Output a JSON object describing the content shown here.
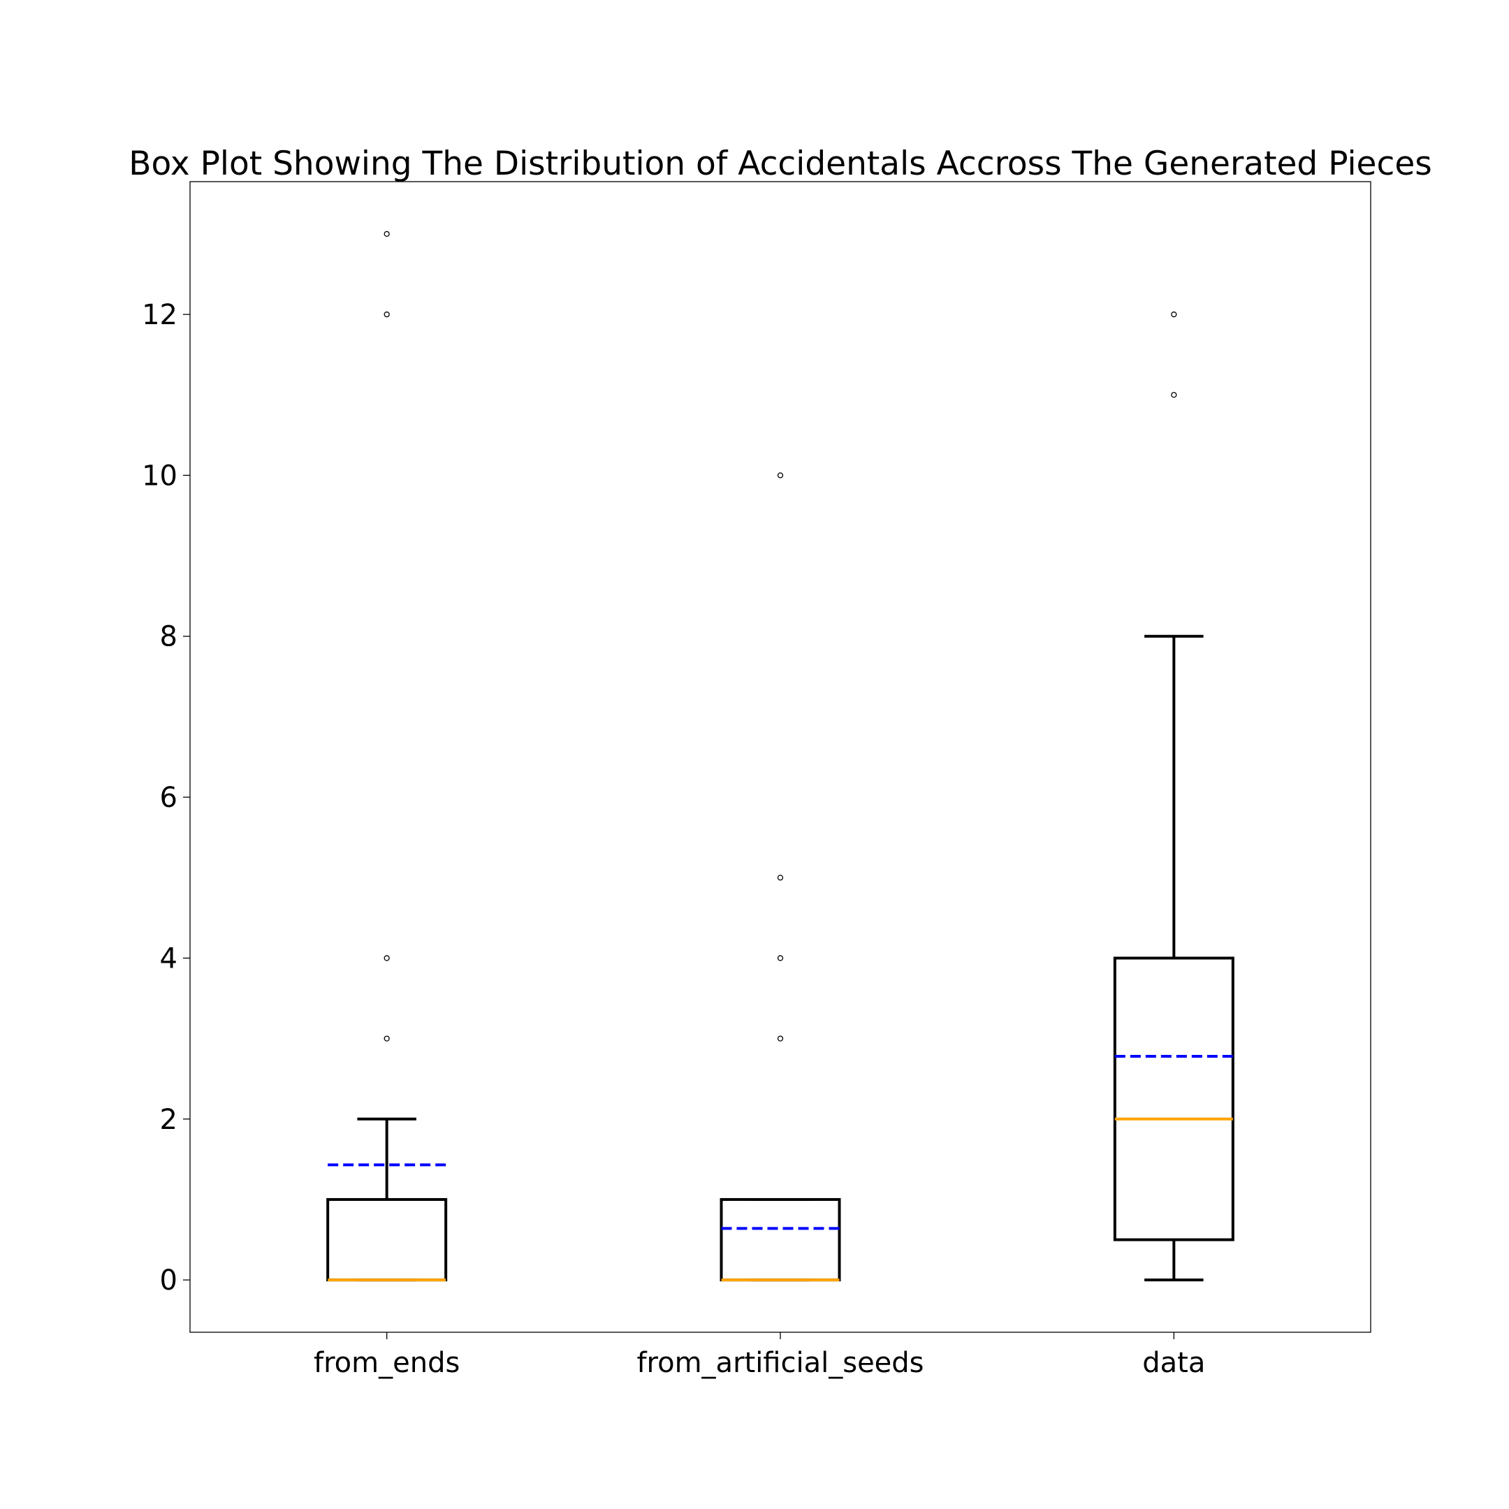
{
  "chart_data": {
    "type": "box",
    "title": "Box Plot Showing The Distribution of Accidentals Accross The Generated Pieces",
    "xlabel": "",
    "ylabel": "",
    "ylim": [
      -0.65,
      13.65
    ],
    "yticks": [
      0,
      2,
      4,
      6,
      8,
      10,
      12
    ],
    "grid": false,
    "legend": "none",
    "colors": {
      "box": "#000000",
      "median": "#ffa500",
      "mean": "#0000ff",
      "flier": "#000000"
    },
    "categories": [
      "from_ends",
      "from_artificial_seeds",
      "data"
    ],
    "boxes": [
      {
        "label": "from_ends",
        "whisker_low": 0,
        "q1": 0,
        "median": 0,
        "q3": 1,
        "whisker_high": 2,
        "mean": 1.43,
        "outliers": [
          3,
          4,
          12,
          13
        ]
      },
      {
        "label": "from_artificial_seeds",
        "whisker_low": 0,
        "q1": 0,
        "median": 0,
        "q3": 1,
        "whisker_high": 1,
        "mean": 0.64,
        "outliers": [
          3,
          4,
          5,
          10
        ]
      },
      {
        "label": "data",
        "whisker_low": 0,
        "q1": 0.5,
        "median": 2,
        "q3": 4,
        "whisker_high": 8,
        "mean": 2.78,
        "outliers": [
          11,
          12
        ]
      }
    ]
  }
}
